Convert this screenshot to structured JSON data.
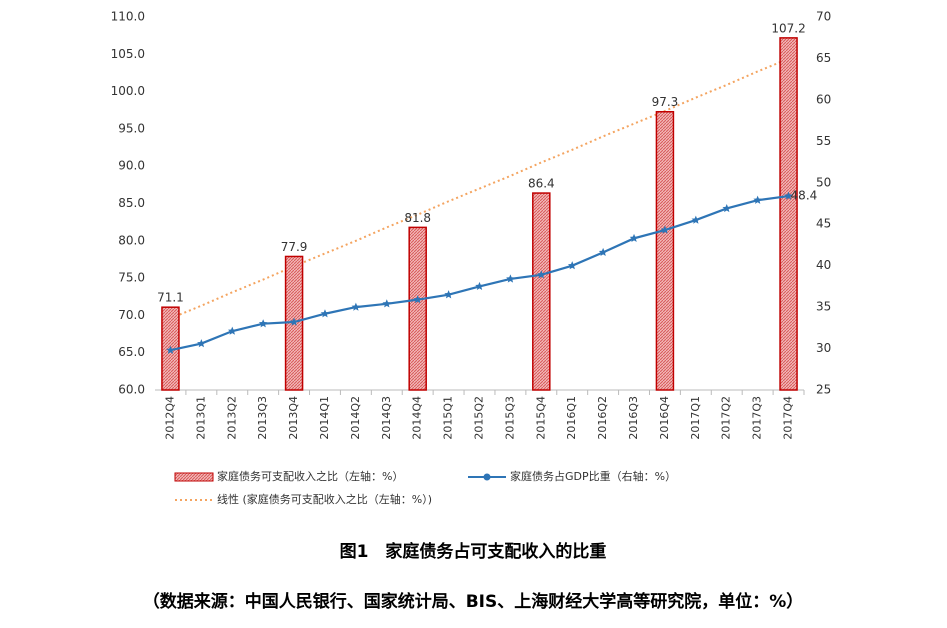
{
  "chart_data": {
    "type": "bar_line",
    "title": "图1　家庭债务占可支配收入的比重",
    "subtitle": "（数据来源：中国人民银行、国家统计局、BIS、上海财经大学高等研究院，单位：%）",
    "categories": [
      "2012Q4",
      "2013Q1",
      "2013Q2",
      "2013Q3",
      "2013Q4",
      "2014Q1",
      "2014Q2",
      "2014Q3",
      "2014Q4",
      "2015Q1",
      "2015Q2",
      "2015Q3",
      "2015Q4",
      "2016Q1",
      "2016Q2",
      "2016Q3",
      "2016Q4",
      "2017Q1",
      "2017Q2",
      "2017Q3",
      "2017Q4"
    ],
    "series": [
      {
        "name": "家庭债务可支配收入之比（左轴：%）",
        "type": "bar",
        "color": "#c00000",
        "values": [
          71.1,
          null,
          null,
          null,
          77.9,
          null,
          null,
          null,
          81.8,
          null,
          null,
          null,
          86.4,
          null,
          null,
          null,
          97.3,
          null,
          null,
          null,
          107.2
        ]
      },
      {
        "name": "家庭债务占GDP比重（右轴：%）",
        "type": "line",
        "axis": "y2",
        "color": "#2e75b6",
        "values": [
          29.8,
          30.6,
          32.1,
          33.0,
          33.2,
          34.2,
          35.0,
          35.4,
          35.9,
          36.5,
          37.5,
          38.4,
          38.9,
          40.0,
          41.6,
          43.3,
          44.3,
          45.5,
          46.9,
          47.9,
          48.4
        ]
      },
      {
        "name": "线性 (家庭债务可支配收入之比（左轴：%）)",
        "type": "trend",
        "color": "#f4a460",
        "values": [
          69.6,
          71.3,
          73.1,
          74.8,
          76.6,
          78.3,
          80.0,
          81.8,
          83.5,
          85.3,
          87.0,
          88.7,
          90.5,
          92.2,
          94.0,
          95.7,
          97.4,
          99.2,
          100.9,
          102.7,
          104.4
        ]
      }
    ],
    "ylim": [
      60,
      110
    ],
    "yticks": [
      {
        "value": 60,
        "label": "60.0"
      },
      {
        "value": 65,
        "label": "65.0"
      },
      {
        "value": 70,
        "label": "70.0"
      },
      {
        "value": 75,
        "label": "75.0"
      },
      {
        "value": 80,
        "label": "80.0"
      },
      {
        "value": 85,
        "label": "85.0"
      },
      {
        "value": 90,
        "label": "90.0"
      },
      {
        "value": 95,
        "label": "95.0"
      },
      {
        "value": 100,
        "label": "100.0"
      },
      {
        "value": 105,
        "label": "105.0"
      },
      {
        "value": 110,
        "label": "110.0"
      }
    ],
    "y2lim": [
      25,
      70
    ],
    "y2ticks": [
      25,
      30,
      35,
      40,
      45,
      50,
      55,
      60,
      65,
      70
    ]
  }
}
